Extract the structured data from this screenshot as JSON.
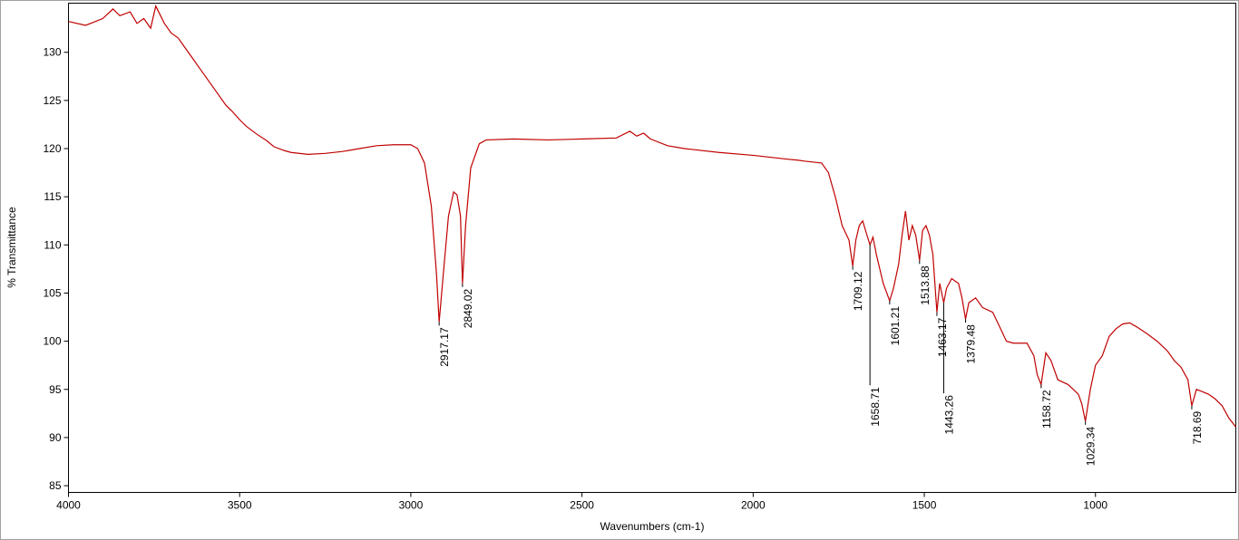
{
  "chart_data": {
    "type": "line",
    "x_label": "Wavenumbers (cm-1)",
    "y_label": "% Transmittance",
    "color": "#c00000",
    "xlim": [
      4000,
      590
    ],
    "ylim": [
      84.3,
      135.1
    ],
    "xticks": [
      4000,
      3500,
      3000,
      2500,
      2000,
      1500,
      1000
    ],
    "yticks": [
      85,
      90,
      95,
      100,
      105,
      110,
      115,
      120,
      125,
      130
    ],
    "x": [
      4000,
      3950,
      3900,
      3870,
      3850,
      3820,
      3800,
      3780,
      3760,
      3745,
      3720,
      3700,
      3680,
      3660,
      3640,
      3620,
      3600,
      3580,
      3560,
      3540,
      3520,
      3500,
      3480,
      3450,
      3420,
      3400,
      3370,
      3350,
      3300,
      3250,
      3200,
      3150,
      3100,
      3050,
      3000,
      2980,
      2960,
      2940,
      2925,
      2917.17,
      2905,
      2890,
      2875,
      2865,
      2855,
      2849.02,
      2840,
      2825,
      2800,
      2780,
      2700,
      2600,
      2500,
      2400,
      2360,
      2340,
      2320,
      2300,
      2250,
      2200,
      2100,
      2000,
      1900,
      1870,
      1850,
      1800,
      1780,
      1760,
      1740,
      1720,
      1709.12,
      1700,
      1690,
      1680,
      1670,
      1658.71,
      1650,
      1640,
      1620,
      1601.21,
      1590,
      1575,
      1565,
      1555,
      1545,
      1535,
      1525,
      1513.88,
      1505,
      1495,
      1485,
      1475,
      1463.17,
      1455,
      1443.26,
      1435,
      1420,
      1400,
      1390,
      1379.48,
      1370,
      1350,
      1330,
      1300,
      1280,
      1260,
      1240,
      1200,
      1180,
      1170,
      1158.72,
      1145,
      1130,
      1110,
      1080,
      1050,
      1040,
      1029.34,
      1015,
      1000,
      980,
      960,
      940,
      920,
      900,
      880,
      850,
      820,
      790,
      770,
      750,
      730,
      718.69,
      705,
      690,
      670,
      650,
      630,
      610,
      590
    ],
    "values": [
      133.2,
      132.8,
      133.5,
      134.5,
      133.8,
      134.2,
      133.0,
      133.5,
      132.5,
      134.8,
      133.0,
      132.0,
      131.5,
      130.5,
      129.5,
      128.5,
      127.5,
      126.5,
      125.5,
      124.5,
      123.8,
      123.0,
      122.3,
      121.5,
      120.8,
      120.2,
      119.8,
      119.6,
      119.4,
      119.5,
      119.7,
      120.0,
      120.3,
      120.4,
      120.4,
      120.0,
      118.5,
      114,
      107,
      102,
      107,
      113,
      115.5,
      115.2,
      113,
      106,
      112,
      118,
      120.5,
      120.9,
      121,
      120.9,
      121.0,
      121.1,
      121.8,
      121.3,
      121.6,
      121.0,
      120.3,
      120.0,
      119.6,
      119.3,
      118.9,
      118.8,
      118.7,
      118.5,
      117.5,
      115,
      112,
      110.5,
      107.8,
      110.5,
      112,
      112.5,
      111.3,
      110,
      110.8,
      109,
      106,
      104.2,
      105.5,
      108,
      111,
      113.5,
      110.5,
      112,
      111,
      108.4,
      111.5,
      112,
      111,
      109,
      103,
      106,
      104,
      105.5,
      106.5,
      106,
      104.5,
      102.3,
      104,
      104.5,
      103.5,
      103,
      101.5,
      100,
      99.8,
      99.8,
      98.5,
      96.5,
      95.5,
      98.8,
      98,
      96,
      95.5,
      94.5,
      93.5,
      91.7,
      95,
      97.5,
      98.5,
      100.5,
      101.3,
      101.8,
      101.9,
      101.5,
      100.8,
      100,
      99,
      98,
      97.3,
      96,
      93.3,
      95.0,
      94.8,
      94.5,
      94,
      93.3,
      92,
      91.1
    ],
    "peaks": [
      {
        "x": 2917.17,
        "y": 102
      },
      {
        "x": 2849.02,
        "y": 106
      },
      {
        "x": 1709.12,
        "y": 107.8
      },
      {
        "x": 1658.71,
        "y": 110
      },
      {
        "x": 1601.21,
        "y": 104.2
      },
      {
        "x": 1513.88,
        "y": 108.4
      },
      {
        "x": 1463.17,
        "y": 103
      },
      {
        "x": 1443.26,
        "y": 104
      },
      {
        "x": 1379.48,
        "y": 102.3
      },
      {
        "x": 1158.72,
        "y": 95.5
      },
      {
        "x": 1029.34,
        "y": 91.7
      },
      {
        "x": 718.69,
        "y": 93.3
      }
    ]
  }
}
